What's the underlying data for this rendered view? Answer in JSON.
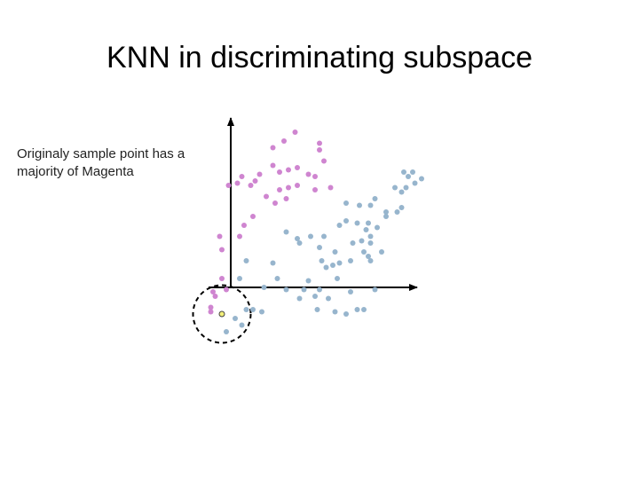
{
  "title": "KNN in discriminating subspace",
  "caption": {
    "line1": "Originaly sample point has a",
    "line2": "majority of Magenta"
  },
  "colors": {
    "magenta": "#cf85d0",
    "blue": "#97b5cd",
    "sample_fill": "#f3f07a",
    "sample_stroke": "#444444",
    "axis": "#000000"
  },
  "chart_data": {
    "type": "scatter",
    "title": "KNN in discriminating subspace",
    "xlabel": "",
    "ylabel": "",
    "xlim": [
      -10,
      57
    ],
    "ylim": [
      -13,
      37
    ],
    "series": [
      {
        "color": "magenta",
        "points": [
          [
            14.5,
            35
          ],
          [
            12,
            33
          ],
          [
            9.5,
            31.5
          ],
          [
            20,
            32.5
          ],
          [
            20,
            31
          ],
          [
            21,
            28.5
          ],
          [
            9.5,
            27.5
          ],
          [
            11,
            26
          ],
          [
            6.5,
            25.5
          ],
          [
            2.5,
            25
          ],
          [
            5.5,
            24
          ],
          [
            15,
            27
          ],
          [
            13,
            26.5
          ],
          [
            17.5,
            25.5
          ],
          [
            19,
            25
          ],
          [
            1.5,
            23.5
          ],
          [
            -0.5,
            23
          ],
          [
            4.5,
            23
          ],
          [
            13,
            22.5
          ],
          [
            11,
            22
          ],
          [
            15,
            23
          ],
          [
            22.5,
            22.5
          ],
          [
            19,
            22
          ],
          [
            12.5,
            20
          ],
          [
            8,
            20.5
          ],
          [
            10,
            19
          ],
          [
            5,
            16
          ],
          [
            3,
            14
          ],
          [
            -2.5,
            11.5
          ],
          [
            -2,
            8.5
          ],
          [
            2,
            11.5
          ],
          [
            -2,
            2
          ],
          [
            -1,
            -0.5
          ],
          [
            -4,
            -1
          ],
          [
            -3.5,
            -2
          ],
          [
            -4.5,
            -4.5
          ],
          [
            -4.5,
            -5.5
          ]
        ]
      },
      {
        "color": "blue",
        "points": [
          [
            39,
            26
          ],
          [
            41,
            26
          ],
          [
            40,
            25
          ],
          [
            43,
            24.5
          ],
          [
            41.5,
            23.5
          ],
          [
            39.5,
            22.5
          ],
          [
            37,
            22.5
          ],
          [
            38.5,
            21.5
          ],
          [
            32.5,
            20
          ],
          [
            26,
            19
          ],
          [
            29,
            18.5
          ],
          [
            31.5,
            18.5
          ],
          [
            38.5,
            18
          ],
          [
            37.5,
            17
          ],
          [
            35,
            17
          ],
          [
            35,
            16
          ],
          [
            26,
            15
          ],
          [
            24.5,
            14
          ],
          [
            28.5,
            14.5
          ],
          [
            31,
            14.5
          ],
          [
            30.5,
            13
          ],
          [
            33,
            13.5
          ],
          [
            31.5,
            11.5
          ],
          [
            29.5,
            10.5
          ],
          [
            31.5,
            10
          ],
          [
            27.5,
            10
          ],
          [
            12.5,
            12.5
          ],
          [
            15,
            11
          ],
          [
            18,
            11.5
          ],
          [
            21,
            11.5
          ],
          [
            15.5,
            10
          ],
          [
            20,
            9
          ],
          [
            23.5,
            8
          ],
          [
            30,
            8
          ],
          [
            34,
            8
          ],
          [
            31,
            7
          ],
          [
            31.5,
            6
          ],
          [
            20.5,
            6
          ],
          [
            27,
            6
          ],
          [
            3.5,
            6
          ],
          [
            9.5,
            5.5
          ],
          [
            23,
            5
          ],
          [
            24.5,
            5.5
          ],
          [
            21.5,
            4.5
          ],
          [
            2,
            2
          ],
          [
            10.5,
            2
          ],
          [
            17.5,
            1.5
          ],
          [
            24,
            2
          ],
          [
            7.5,
            0
          ],
          [
            12.5,
            -0.5
          ],
          [
            16.5,
            -0.5
          ],
          [
            20,
            -0.5
          ],
          [
            19,
            -2
          ],
          [
            22,
            -2.5
          ],
          [
            27,
            -1
          ],
          [
            32.5,
            -0.5
          ],
          [
            15.5,
            -2.5
          ],
          [
            5,
            -5
          ],
          [
            3.5,
            -5
          ],
          [
            7,
            -5.5
          ],
          [
            19.5,
            -5
          ],
          [
            23.5,
            -5.5
          ],
          [
            26,
            -6
          ],
          [
            28.5,
            -5
          ],
          [
            30,
            -5
          ],
          [
            1,
            -7
          ],
          [
            2.5,
            -8.5
          ],
          [
            -1,
            -10
          ]
        ]
      },
      {
        "name": "sample",
        "color": "sample",
        "points": [
          [
            -2,
            -6
          ]
        ]
      }
    ],
    "neighborhood_circle": {
      "center": [
        -2,
        -6
      ],
      "radius_units": 6.5
    },
    "grid": false,
    "legend": "none"
  }
}
